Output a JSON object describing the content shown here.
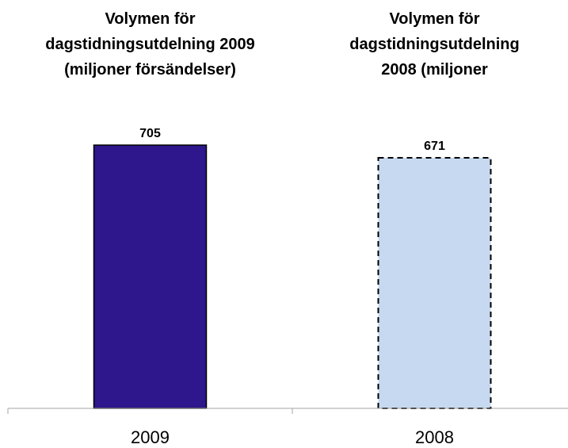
{
  "chart_data": {
    "type": "bar",
    "categories": [
      "2009",
      "2008"
    ],
    "values": [
      705,
      671
    ],
    "category_titles": [
      [
        "Volymen för",
        "dagstidningsutdelning 2009",
        "(miljoner försändelser)"
      ],
      [
        "Volymen för",
        "dagstidningsutdelning",
        "2008 (miljoner"
      ]
    ],
    "ylim": [
      0,
      705
    ],
    "grid": false,
    "data_labels": true,
    "colors": {
      "bar_2009": "#2e168c",
      "bar_2008": "#c6d9f0",
      "outline": "#000000",
      "axis": "#a6a6a6"
    },
    "bar_styles": [
      "solid",
      "dashed"
    ]
  }
}
